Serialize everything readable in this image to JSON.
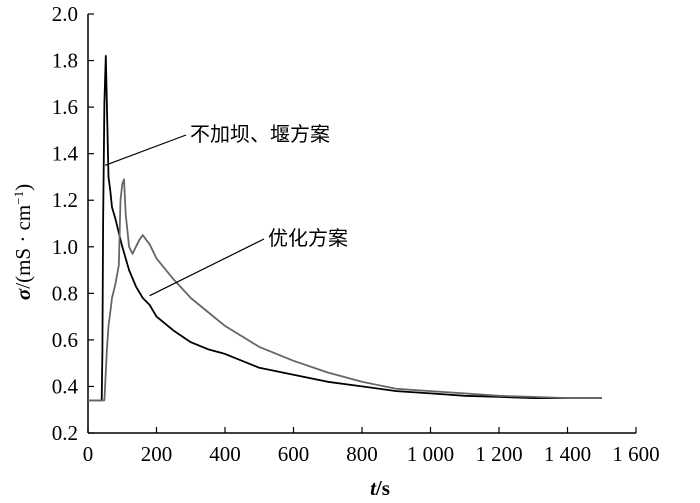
{
  "chart_data": {
    "type": "line",
    "title": "",
    "xlabel": {
      "var": "t",
      "unit": "/s"
    },
    "ylabel": {
      "var": "σ",
      "unit": "/(mS · cm",
      "sup": "−1",
      "close": ")"
    },
    "xlim": [
      0,
      1600
    ],
    "ylim": [
      0.2,
      2.0
    ],
    "x_ticks": [
      0,
      200,
      400,
      600,
      800,
      1000,
      1200,
      1400,
      1600
    ],
    "x_tick_labels": [
      "0",
      "200",
      "400",
      "600",
      "800",
      "1 000",
      "1 200",
      "1 400",
      "1 600"
    ],
    "y_ticks": [
      0.2,
      0.4,
      0.6,
      0.8,
      1.0,
      1.2,
      1.4,
      1.6,
      1.8,
      2.0
    ],
    "y_tick_labels": [
      "0.2",
      "0.4",
      "0.6",
      "0.8",
      "1.0",
      "1.2",
      "1.4",
      "1.6",
      "1.8",
      "2.0"
    ],
    "grid": false,
    "legend": "none",
    "series": [
      {
        "name": "不加坝、堰方案",
        "color": "#000000",
        "x": [
          0,
          40,
          42,
          44,
          48,
          52,
          56,
          60,
          65,
          70,
          80,
          90,
          100,
          120,
          140,
          160,
          180,
          200,
          250,
          300,
          350,
          400,
          500,
          600,
          700,
          800,
          900,
          1000,
          1100,
          1200,
          1300,
          1400,
          1500
        ],
        "y": [
          0.34,
          0.34,
          0.55,
          1.1,
          1.62,
          1.82,
          1.55,
          1.3,
          1.24,
          1.17,
          1.12,
          1.06,
          1.0,
          0.9,
          0.83,
          0.78,
          0.75,
          0.7,
          0.64,
          0.59,
          0.56,
          0.54,
          0.48,
          0.45,
          0.42,
          0.4,
          0.38,
          0.37,
          0.36,
          0.355,
          0.35,
          0.35,
          0.35
        ]
      },
      {
        "name": "优化方案",
        "color": "#666666",
        "x": [
          0,
          48,
          50,
          55,
          60,
          65,
          70,
          80,
          90,
          95,
          100,
          105,
          110,
          120,
          130,
          140,
          150,
          160,
          170,
          180,
          190,
          200,
          250,
          300,
          350,
          400,
          500,
          600,
          700,
          800,
          900,
          1000,
          1100,
          1200,
          1300,
          1400,
          1500
        ],
        "y": [
          0.34,
          0.34,
          0.4,
          0.55,
          0.66,
          0.72,
          0.78,
          0.84,
          0.92,
          1.2,
          1.27,
          1.29,
          1.14,
          1.0,
          0.97,
          1.0,
          1.03,
          1.05,
          1.03,
          1.01,
          0.98,
          0.95,
          0.86,
          0.78,
          0.72,
          0.66,
          0.57,
          0.51,
          0.46,
          0.42,
          0.39,
          0.38,
          0.37,
          0.36,
          0.355,
          0.35,
          0.35
        ]
      }
    ],
    "annotations": [
      {
        "text": "不加坝、堰方案",
        "target_x": 50,
        "target_y": 1.35
      },
      {
        "text": "优化方案",
        "target_x": 180,
        "target_y": 0.79
      }
    ]
  }
}
